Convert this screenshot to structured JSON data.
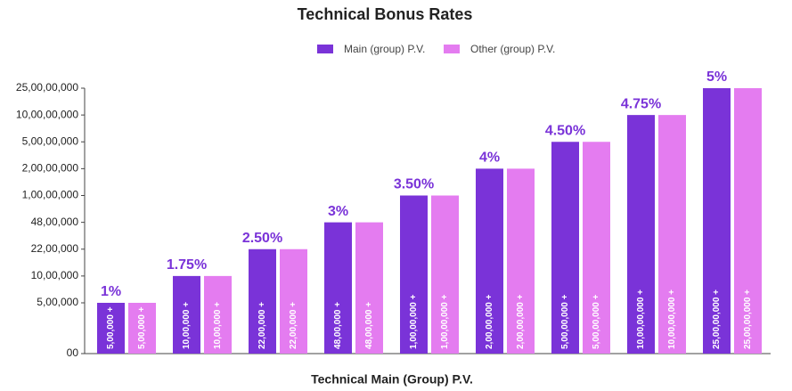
{
  "chart_data": {
    "type": "bar",
    "title": "Technical Bonus Rates",
    "x_label": "Technical Main (Group) P.V.",
    "categories": [
      null,
      null,
      null,
      null,
      null,
      null,
      null,
      null,
      null
    ],
    "annotations": [
      "1%",
      "1.75%",
      "2.50%",
      "3%",
      "3.50%",
      "4%",
      "4.50%",
      "4.75%",
      "5%"
    ],
    "series": [
      {
        "name": "Main (group) P.V.",
        "color": "#7a33d8",
        "values": [
          500000,
          1000000,
          2200000,
          4800000,
          10000000,
          20000000,
          50000000,
          100000000,
          250000000
        ],
        "value_labels": [
          "5,00,000 +",
          "10,00,000 +",
          "22,00,000 +",
          "48,00,000 +",
          "1,00,00,000 +",
          "2,00,00,000 +",
          "5,00,00,000 +",
          "10,00,00,000 +",
          "25,00,00,000 +"
        ]
      },
      {
        "name": "Other (group) P.V.",
        "color": "#e47cf0",
        "values": [
          500000,
          1000000,
          2200000,
          4800000,
          10000000,
          20000000,
          50000000,
          100000000,
          250000000
        ],
        "value_labels": [
          "5,00,000 +",
          "10,00,000 +",
          "22,00,000 +",
          "48,00,000 +",
          "1,00,00,000 +",
          "2,00,00,000 +",
          "5,00,00,000 +",
          "10,00,00,000 +",
          "25,00,00,000 +"
        ]
      }
    ],
    "ylim": [
      0,
      250000000
    ],
    "yticks": [
      {
        "value": 0,
        "label": "00"
      },
      {
        "value": 500000,
        "label": "5,00,000"
      },
      {
        "value": 1000000,
        "label": "10,00,000"
      },
      {
        "value": 2200000,
        "label": "22,00,000"
      },
      {
        "value": 4800000,
        "label": "48,00,000"
      },
      {
        "value": 10000000,
        "label": "1,00,00,000"
      },
      {
        "value": 20000000,
        "label": "2,00,00,000"
      },
      {
        "value": 50000000,
        "label": "5,00,00,000"
      },
      {
        "value": 100000000,
        "label": "10,00,00,000"
      },
      {
        "value": 250000000,
        "label": "25,00,00,000"
      }
    ],
    "legend": "top"
  }
}
